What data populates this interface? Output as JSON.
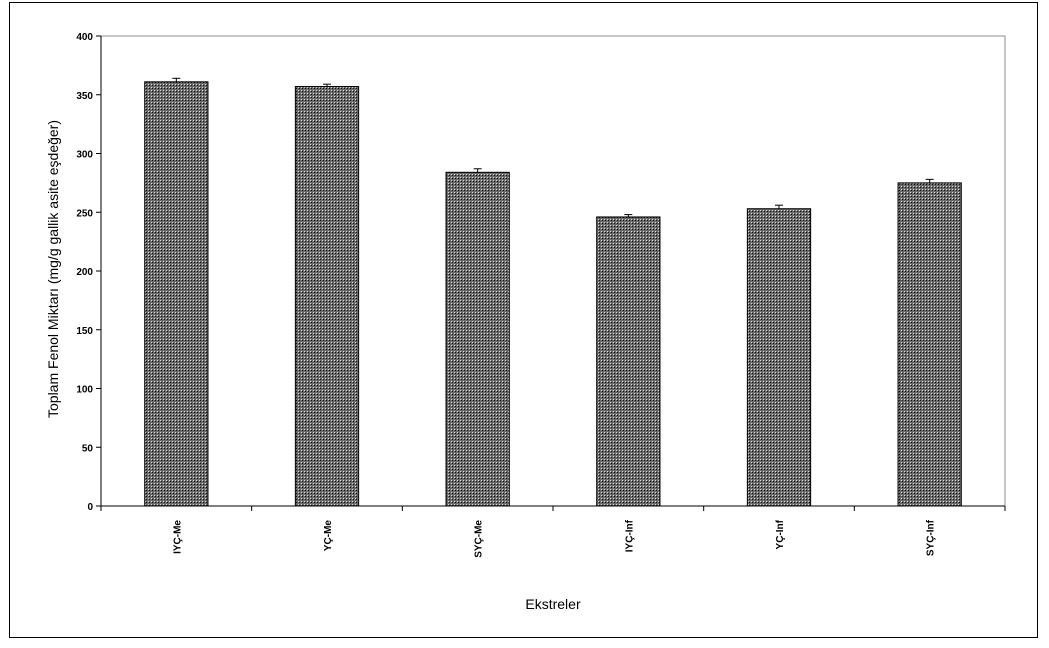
{
  "chart_data": {
    "type": "bar",
    "title": "",
    "xlabel": "Ekstreler",
    "ylabel": "Toplam Fenol Miktarı (mg/g gallik asite eşdeğer)",
    "ylim": [
      0,
      400
    ],
    "yticks": [
      0,
      50,
      100,
      150,
      200,
      250,
      300,
      350,
      400
    ],
    "categories": [
      "IYÇ-Me",
      "YÇ-Me",
      "SYÇ-Me",
      "IYÇ-Inf",
      "YÇ-Inf",
      "SYÇ-Inf"
    ],
    "values": [
      361,
      357,
      284,
      246,
      253,
      275
    ],
    "errors": [
      3,
      2,
      3,
      2,
      3,
      3
    ],
    "grid": false,
    "legend": "none",
    "bar_color": "#333333",
    "frame_color": "#000000"
  }
}
